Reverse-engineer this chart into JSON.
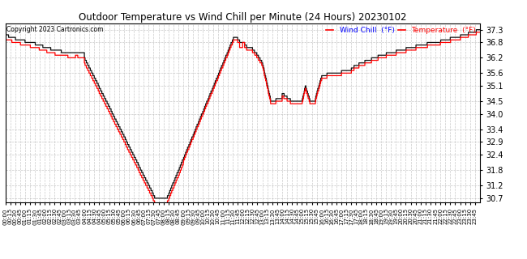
{
  "title": "Outdoor Temperature vs Wind Chill per Minute (24 Hours) 20230102",
  "copyright": "Copyright 2023 Cartronics.com",
  "legend_wind_chill": "Wind Chill  (°F)",
  "legend_temperature": "Temperature  (°F)",
  "wind_chill_color": "#FF0000",
  "temperature_color": "#111111",
  "background_color": "#FFFFFF",
  "grid_color": "#BBBBBB",
  "ylim_min": 30.55,
  "ylim_max": 37.55,
  "yticks": [
    30.7,
    31.2,
    31.8,
    32.4,
    32.9,
    33.4,
    34.0,
    34.5,
    35.1,
    35.6,
    36.2,
    36.8,
    37.3
  ],
  "xtick_interval": 15,
  "total_minutes": 1440
}
